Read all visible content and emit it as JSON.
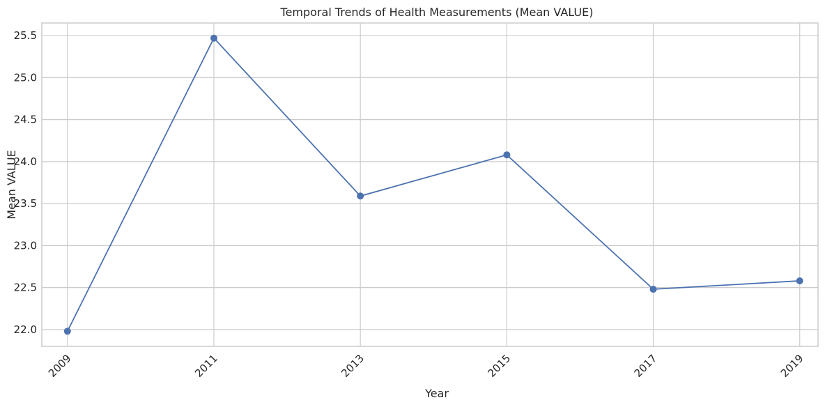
{
  "chart_data": {
    "type": "line",
    "title": "Temporal Trends of Health Measurements (Mean VALUE)",
    "xlabel": "Year",
    "ylabel": "Mean VALUE",
    "x": [
      2009,
      2011,
      2013,
      2015,
      2017,
      2019
    ],
    "series": [
      {
        "values": [
          21.98,
          25.47,
          23.59,
          24.08,
          22.48,
          22.58
        ],
        "color": "#4c72b0",
        "marker": "circle"
      }
    ],
    "x_ticks": [
      2009,
      2011,
      2013,
      2015,
      2017,
      2019
    ],
    "x_tick_labels": [
      "2009",
      "2011",
      "2013",
      "2015",
      "2017",
      "2019"
    ],
    "y_ticks": [
      22.0,
      22.5,
      23.0,
      23.5,
      24.0,
      24.5,
      25.0,
      25.5
    ],
    "y_tick_labels": [
      "22.0",
      "22.5",
      "23.0",
      "23.5",
      "24.0",
      "24.5",
      "25.0",
      "25.5"
    ],
    "xlim": [
      2008.65,
      2019.25
    ],
    "ylim": [
      21.8,
      25.65
    ],
    "x_tick_rotation": -45,
    "grid": true,
    "legend": "none"
  }
}
